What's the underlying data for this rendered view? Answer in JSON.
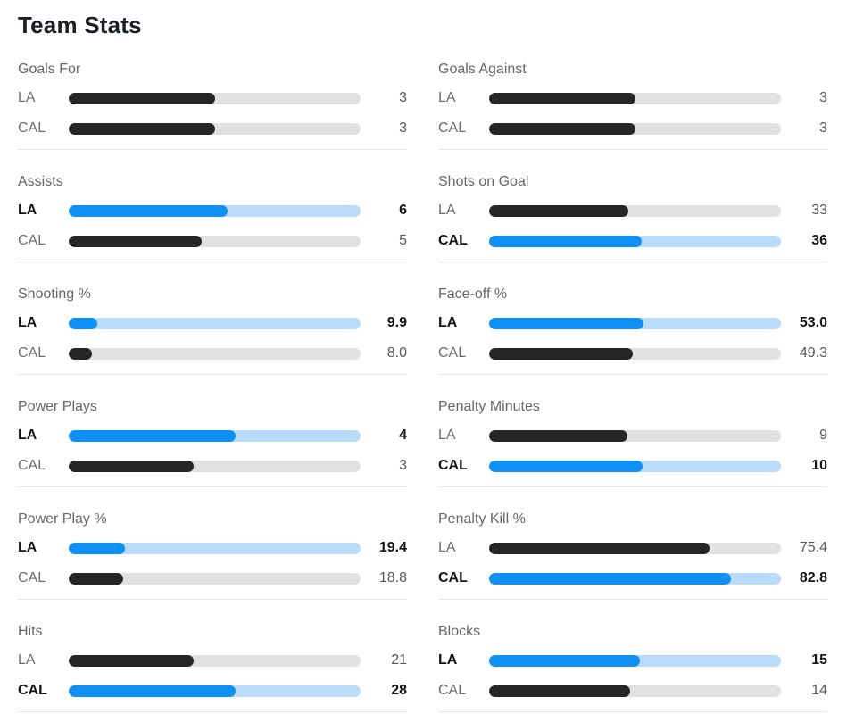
{
  "title": "Team Stats",
  "colors": {
    "bar": "#242628",
    "track": "#e1e1e1",
    "highlight_bar": "#0f90f2",
    "highlight_track": "#b9dcfa"
  },
  "chart_data": {
    "type": "bar",
    "orientation": "horizontal",
    "teams": [
      "LA",
      "CAL"
    ],
    "note_fill_rule": "percent stats fill = value/100; counting stats fill = value/(LA+CAL); higher value row is highlighted blue/bold",
    "columns": [
      {
        "stats": [
          {
            "label": "Goals For",
            "percent": false,
            "rows": [
              {
                "team": "LA",
                "value": 3,
                "display": "3"
              },
              {
                "team": "CAL",
                "value": 3,
                "display": "3"
              }
            ]
          },
          {
            "label": "Assists",
            "percent": false,
            "rows": [
              {
                "team": "LA",
                "value": 6,
                "display": "6"
              },
              {
                "team": "CAL",
                "value": 5,
                "display": "5"
              }
            ]
          },
          {
            "label": "Shooting %",
            "percent": true,
            "rows": [
              {
                "team": "LA",
                "value": 9.9,
                "display": "9.9"
              },
              {
                "team": "CAL",
                "value": 8.0,
                "display": "8.0"
              }
            ]
          },
          {
            "label": "Power Plays",
            "percent": false,
            "rows": [
              {
                "team": "LA",
                "value": 4,
                "display": "4"
              },
              {
                "team": "CAL",
                "value": 3,
                "display": "3"
              }
            ]
          },
          {
            "label": "Power Play %",
            "percent": true,
            "rows": [
              {
                "team": "LA",
                "value": 19.4,
                "display": "19.4"
              },
              {
                "team": "CAL",
                "value": 18.8,
                "display": "18.8"
              }
            ]
          },
          {
            "label": "Hits",
            "percent": false,
            "rows": [
              {
                "team": "LA",
                "value": 21,
                "display": "21"
              },
              {
                "team": "CAL",
                "value": 28,
                "display": "28"
              }
            ]
          }
        ]
      },
      {
        "stats": [
          {
            "label": "Goals Against",
            "percent": false,
            "rows": [
              {
                "team": "LA",
                "value": 3,
                "display": "3"
              },
              {
                "team": "CAL",
                "value": 3,
                "display": "3"
              }
            ]
          },
          {
            "label": "Shots on Goal",
            "percent": false,
            "rows": [
              {
                "team": "LA",
                "value": 33,
                "display": "33"
              },
              {
                "team": "CAL",
                "value": 36,
                "display": "36"
              }
            ]
          },
          {
            "label": "Face-off %",
            "percent": true,
            "rows": [
              {
                "team": "LA",
                "value": 53.0,
                "display": "53.0"
              },
              {
                "team": "CAL",
                "value": 49.3,
                "display": "49.3"
              }
            ]
          },
          {
            "label": "Penalty Minutes",
            "percent": false,
            "rows": [
              {
                "team": "LA",
                "value": 9,
                "display": "9"
              },
              {
                "team": "CAL",
                "value": 10,
                "display": "10"
              }
            ]
          },
          {
            "label": "Penalty Kill %",
            "percent": true,
            "rows": [
              {
                "team": "LA",
                "value": 75.4,
                "display": "75.4"
              },
              {
                "team": "CAL",
                "value": 82.8,
                "display": "82.8"
              }
            ]
          },
          {
            "label": "Blocks",
            "percent": false,
            "rows": [
              {
                "team": "LA",
                "value": 15,
                "display": "15"
              },
              {
                "team": "CAL",
                "value": 14,
                "display": "14"
              }
            ]
          }
        ]
      }
    ]
  }
}
